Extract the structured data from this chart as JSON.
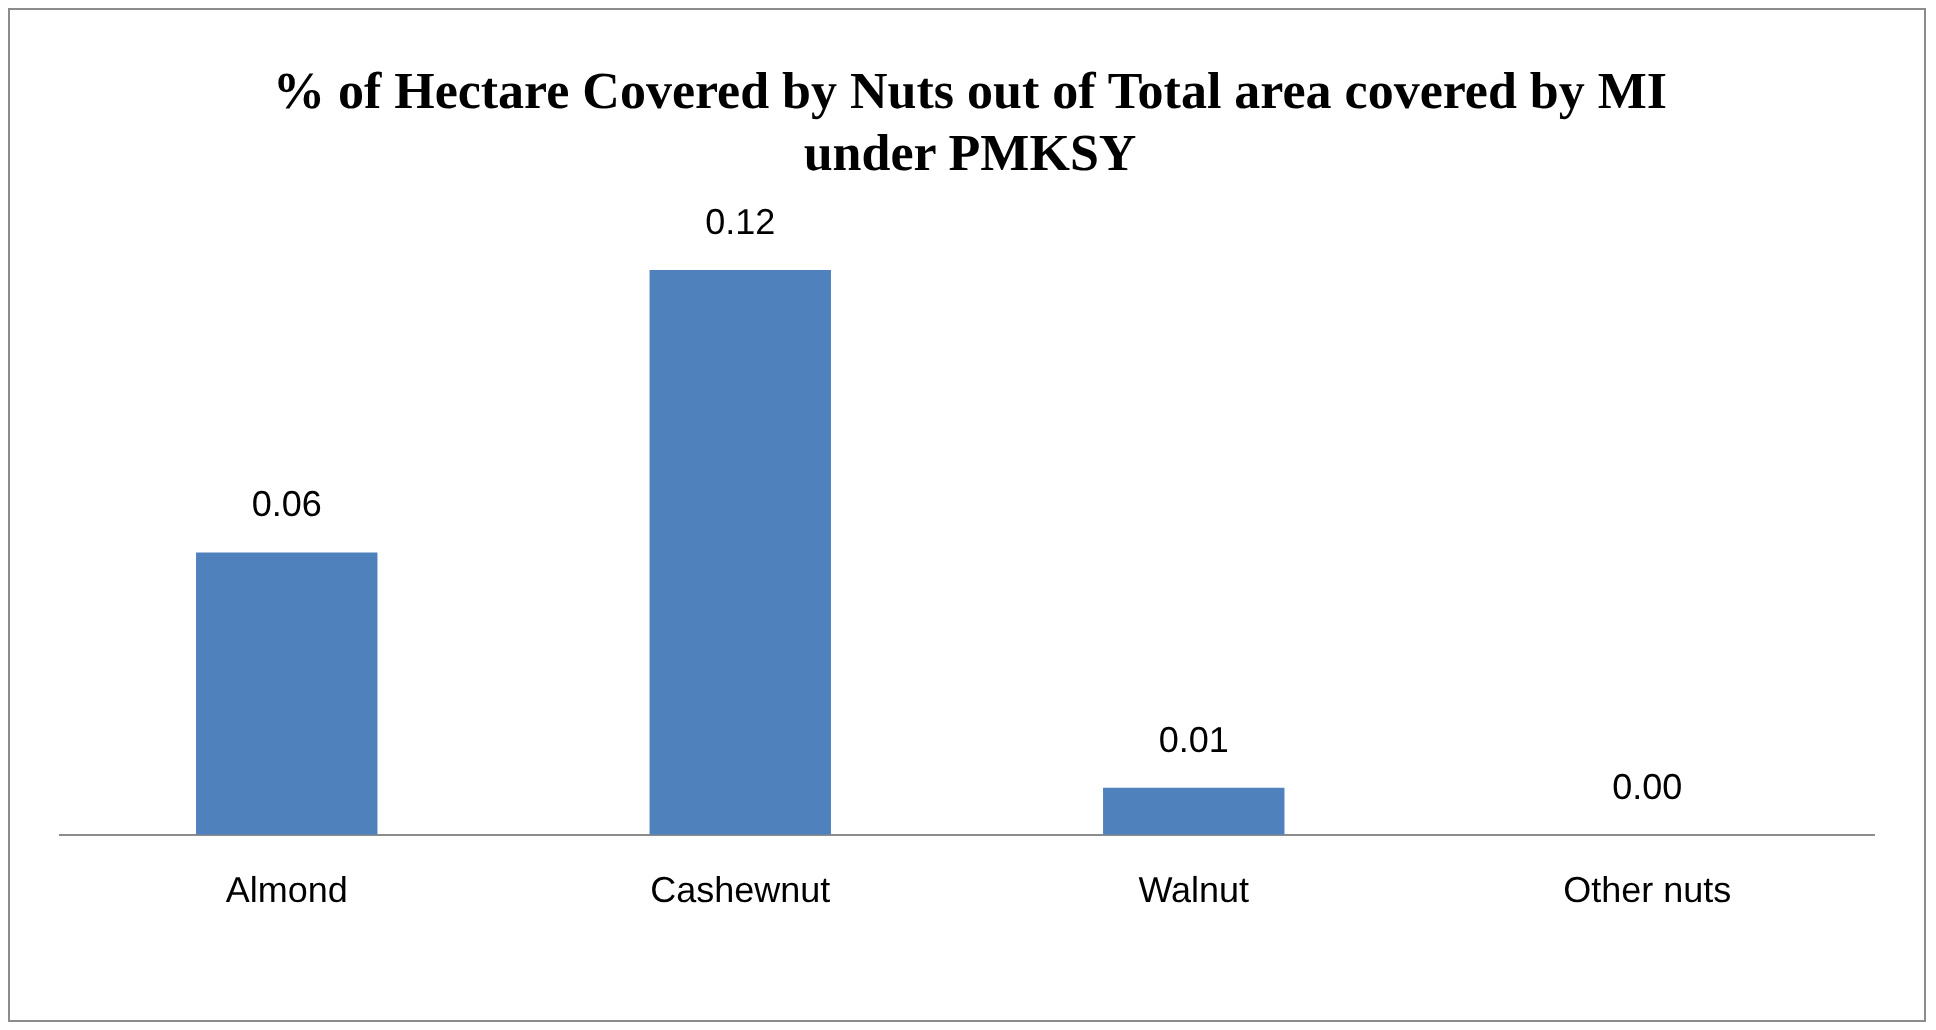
{
  "chart_data": {
    "type": "bar",
    "title": "% of Hectare Covered by Nuts out of Total area covered by MI under PMKSY",
    "categories": [
      "Almond",
      "Cashewnut",
      "Walnut",
      "Other nuts"
    ],
    "values": [
      0.06,
      0.12,
      0.01,
      0.0
    ],
    "color": "#4f81bd",
    "value_labels": [
      "0.06",
      "0.12",
      "0.01",
      "0.00"
    ],
    "grid": false,
    "legend": false
  }
}
